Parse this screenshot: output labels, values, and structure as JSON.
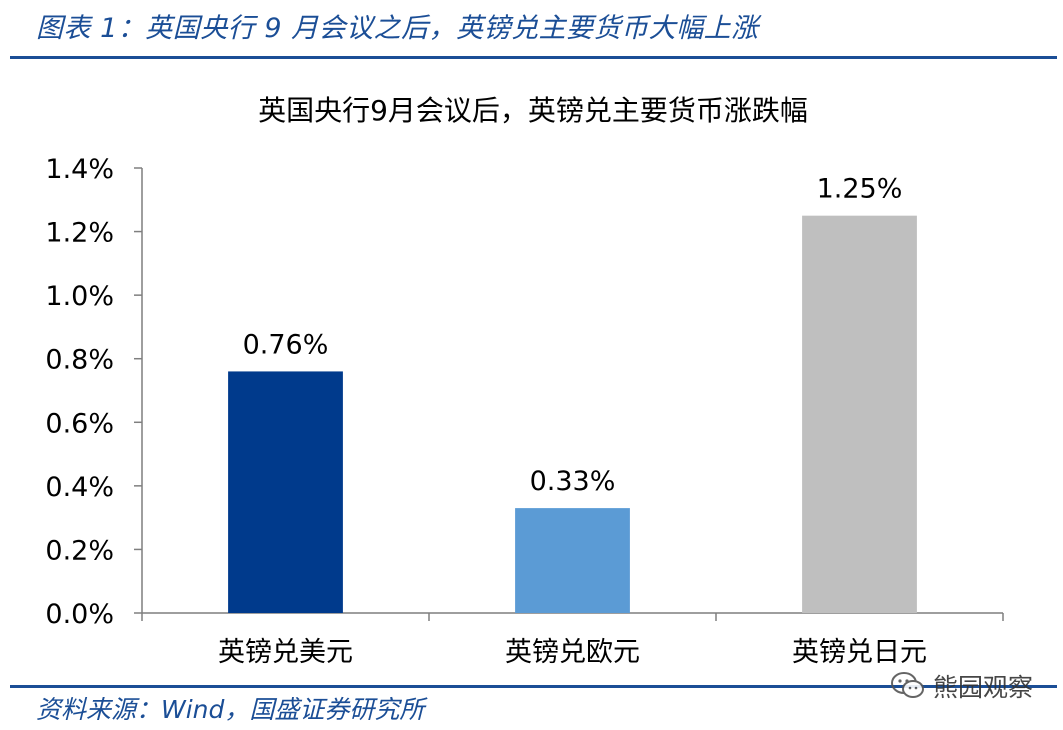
{
  "figure": {
    "title": "图表 1：英国央行 9 月会议之后，英镑兑主要货币大幅上涨",
    "source": "资料来源：Wind，国盛证券研究所",
    "watermark": "熊园观察"
  },
  "colors": {
    "accent": "#1b4e96",
    "bar_colors": [
      "#003a8c",
      "#5b9bd5",
      "#bfbfbf"
    ]
  },
  "chart_data": {
    "type": "bar",
    "title": "英国央行9月会议后，英镑兑主要货币涨跌幅",
    "categories": [
      "英镑兑美元",
      "英镑兑欧元",
      "英镑兑日元"
    ],
    "values": [
      0.76,
      0.33,
      1.25
    ],
    "value_labels": [
      "0.76%",
      "0.33%",
      "1.25%"
    ],
    "ylim": [
      0,
      1.4
    ],
    "yticks": [
      0.0,
      0.2,
      0.4,
      0.6,
      0.8,
      1.0,
      1.2,
      1.4
    ],
    "ytick_labels": [
      "0.0%",
      "0.2%",
      "0.4%",
      "0.6%",
      "0.8%",
      "1.0%",
      "1.2%",
      "1.4%"
    ],
    "xlabel": "",
    "ylabel": "",
    "grid": false,
    "legend": "none"
  }
}
